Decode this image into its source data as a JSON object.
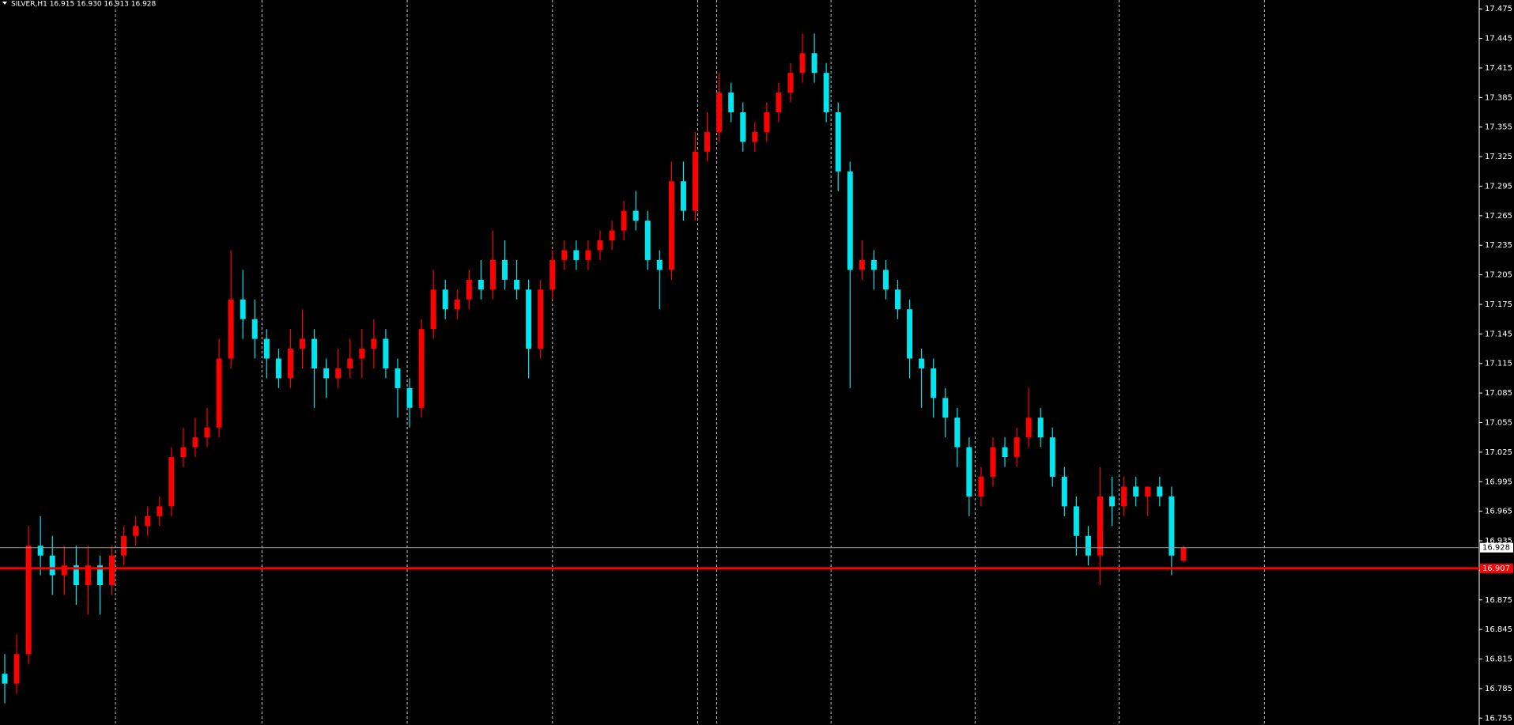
{
  "chart_data": {
    "type": "candlestick",
    "title": "SILVER,H1  16.915 16.930 16.913 16.928",
    "up_color": "#ff0000",
    "down_color": "#00e5ee",
    "ylim": [
      16.748,
      17.484
    ],
    "yticks": [
      17.475,
      17.445,
      17.415,
      17.385,
      17.355,
      17.325,
      17.295,
      17.265,
      17.235,
      17.205,
      17.175,
      17.145,
      17.115,
      17.085,
      17.055,
      17.025,
      16.995,
      16.965,
      16.935,
      16.905,
      16.875,
      16.845,
      16.815,
      16.785,
      16.755
    ],
    "separators": [
      9.3,
      21.6,
      33.8,
      46,
      58.2,
      59.8,
      69.4,
      81.5,
      93.6,
      105.8
    ],
    "bid_line": {
      "value": 16.928,
      "color": "#9a9a9a"
    },
    "level_line": {
      "value": 16.907,
      "color": "#ff0000"
    },
    "ohlc": [
      [
        16.8,
        16.82,
        16.77,
        16.79
      ],
      [
        16.79,
        16.84,
        16.78,
        16.82
      ],
      [
        16.82,
        16.95,
        16.81,
        16.93
      ],
      [
        16.93,
        16.96,
        16.9,
        16.92
      ],
      [
        16.92,
        16.94,
        16.88,
        16.9
      ],
      [
        16.9,
        16.93,
        16.88,
        16.91
      ],
      [
        16.91,
        16.93,
        16.87,
        16.89
      ],
      [
        16.89,
        16.93,
        16.86,
        16.91
      ],
      [
        16.91,
        16.92,
        16.86,
        16.89
      ],
      [
        16.89,
        16.93,
        16.88,
        16.92
      ],
      [
        16.92,
        16.95,
        16.91,
        16.94
      ],
      [
        16.94,
        16.96,
        16.93,
        16.95
      ],
      [
        16.95,
        16.97,
        16.94,
        16.96
      ],
      [
        16.96,
        16.98,
        16.95,
        16.97
      ],
      [
        16.97,
        17.03,
        16.96,
        17.02
      ],
      [
        17.02,
        17.05,
        17.01,
        17.03
      ],
      [
        17.03,
        17.06,
        17.02,
        17.04
      ],
      [
        17.04,
        17.07,
        17.03,
        17.05
      ],
      [
        17.05,
        17.14,
        17.04,
        17.12
      ],
      [
        17.12,
        17.23,
        17.11,
        17.18
      ],
      [
        17.18,
        17.21,
        17.14,
        17.16
      ],
      [
        17.16,
        17.18,
        17.12,
        17.14
      ],
      [
        17.14,
        17.15,
        17.1,
        17.12
      ],
      [
        17.12,
        17.13,
        17.09,
        17.1
      ],
      [
        17.1,
        17.15,
        17.09,
        17.13
      ],
      [
        17.13,
        17.17,
        17.11,
        17.14
      ],
      [
        17.14,
        17.15,
        17.07,
        17.11
      ],
      [
        17.11,
        17.12,
        17.08,
        17.1
      ],
      [
        17.1,
        17.13,
        17.09,
        17.11
      ],
      [
        17.11,
        17.14,
        17.1,
        17.12
      ],
      [
        17.12,
        17.15,
        17.1,
        17.13
      ],
      [
        17.13,
        17.16,
        17.11,
        17.14
      ],
      [
        17.14,
        17.15,
        17.1,
        17.11
      ],
      [
        17.11,
        17.12,
        17.06,
        17.09
      ],
      [
        17.09,
        17.1,
        17.05,
        17.07
      ],
      [
        17.07,
        17.16,
        17.06,
        17.15
      ],
      [
        17.15,
        17.21,
        17.14,
        17.19
      ],
      [
        17.19,
        17.2,
        17.16,
        17.17
      ],
      [
        17.17,
        17.19,
        17.16,
        17.18
      ],
      [
        17.18,
        17.21,
        17.17,
        17.2
      ],
      [
        17.2,
        17.22,
        17.18,
        17.19
      ],
      [
        17.19,
        17.25,
        17.18,
        17.22
      ],
      [
        17.22,
        17.24,
        17.19,
        17.2
      ],
      [
        17.2,
        17.22,
        17.18,
        17.19
      ],
      [
        17.19,
        17.2,
        17.1,
        17.13
      ],
      [
        17.13,
        17.2,
        17.12,
        17.19
      ],
      [
        17.19,
        17.23,
        17.18,
        17.22
      ],
      [
        17.22,
        17.24,
        17.21,
        17.23
      ],
      [
        17.23,
        17.24,
        17.21,
        17.22
      ],
      [
        17.22,
        17.24,
        17.21,
        17.23
      ],
      [
        17.23,
        17.25,
        17.22,
        17.24
      ],
      [
        17.24,
        17.26,
        17.23,
        17.25
      ],
      [
        17.25,
        17.28,
        17.24,
        17.27
      ],
      [
        17.27,
        17.29,
        17.25,
        17.26
      ],
      [
        17.26,
        17.27,
        17.21,
        17.22
      ],
      [
        17.22,
        17.23,
        17.17,
        17.21
      ],
      [
        17.21,
        17.32,
        17.2,
        17.3
      ],
      [
        17.3,
        17.32,
        17.26,
        17.27
      ],
      [
        17.27,
        17.35,
        17.26,
        17.33
      ],
      [
        17.33,
        17.37,
        17.32,
        17.35
      ],
      [
        17.35,
        17.41,
        17.34,
        17.39
      ],
      [
        17.39,
        17.4,
        17.36,
        17.37
      ],
      [
        17.37,
        17.38,
        17.33,
        17.34
      ],
      [
        17.34,
        17.36,
        17.33,
        17.35
      ],
      [
        17.35,
        17.38,
        17.34,
        17.37
      ],
      [
        17.37,
        17.4,
        17.36,
        17.39
      ],
      [
        17.39,
        17.42,
        17.38,
        17.41
      ],
      [
        17.41,
        17.45,
        17.4,
        17.43
      ],
      [
        17.43,
        17.45,
        17.4,
        17.41
      ],
      [
        17.41,
        17.42,
        17.36,
        17.37
      ],
      [
        17.37,
        17.38,
        17.29,
        17.31
      ],
      [
        17.31,
        17.32,
        17.09,
        17.21
      ],
      [
        17.21,
        17.24,
        17.2,
        17.22
      ],
      [
        17.22,
        17.23,
        17.19,
        17.21
      ],
      [
        17.21,
        17.22,
        17.18,
        17.19
      ],
      [
        17.19,
        17.2,
        17.16,
        17.17
      ],
      [
        17.17,
        17.18,
        17.1,
        17.12
      ],
      [
        17.12,
        17.13,
        17.07,
        17.11
      ],
      [
        17.11,
        17.12,
        17.06,
        17.08
      ],
      [
        17.08,
        17.09,
        17.04,
        17.06
      ],
      [
        17.06,
        17.07,
        17.01,
        17.03
      ],
      [
        17.03,
        17.04,
        16.96,
        16.98
      ],
      [
        16.98,
        17.01,
        16.97,
        17.0
      ],
      [
        17.0,
        17.04,
        16.99,
        17.03
      ],
      [
        17.03,
        17.04,
        17.01,
        17.02
      ],
      [
        17.02,
        17.05,
        17.01,
        17.04
      ],
      [
        17.04,
        17.09,
        17.03,
        17.06
      ],
      [
        17.06,
        17.07,
        17.03,
        17.04
      ],
      [
        17.04,
        17.05,
        16.99,
        17.0
      ],
      [
        17.0,
        17.01,
        16.96,
        16.97
      ],
      [
        16.97,
        16.98,
        16.92,
        16.94
      ],
      [
        16.94,
        16.95,
        16.91,
        16.92
      ],
      [
        16.92,
        17.01,
        16.89,
        16.98
      ],
      [
        16.98,
        17.0,
        16.95,
        16.97
      ],
      [
        16.97,
        17.0,
        16.96,
        16.99
      ],
      [
        16.99,
        17.0,
        16.97,
        16.98
      ],
      [
        16.98,
        16.99,
        16.96,
        16.99
      ],
      [
        16.99,
        17.0,
        16.97,
        16.98
      ],
      [
        16.98,
        16.99,
        16.9,
        16.92
      ],
      [
        16.915,
        16.93,
        16.913,
        16.928
      ]
    ]
  }
}
